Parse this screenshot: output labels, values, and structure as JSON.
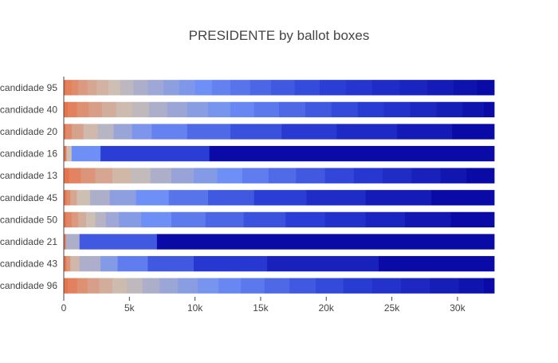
{
  "chart_data": {
    "type": "bar",
    "orientation": "horizontal",
    "stacked": true,
    "title": "PRESIDENTE by ballot boxes",
    "xlabel": "",
    "ylabel": "",
    "xlim": [
      0,
      32800
    ],
    "x_ticks": [
      0,
      5000,
      10000,
      15000,
      20000,
      25000,
      30000
    ],
    "x_tick_labels": [
      "0",
      "5k",
      "10k",
      "15k",
      "20k",
      "25k",
      "30k"
    ],
    "colorscale": [
      "#e8734a",
      "#cdbfb4",
      "#6e8ff5",
      "#2a3ed6",
      "#0a0aa6"
    ],
    "categories": [
      "candidade 95",
      "candidade 40",
      "candidade 20",
      "candidade 16",
      "candidade 13",
      "candidade 45",
      "candidade 50",
      "candidade 21",
      "candidade 43",
      "candidade 96"
    ],
    "series_cumulative": [
      [
        0,
        150,
        600,
        1100,
        1800,
        2500,
        3400,
        4300,
        5300,
        6400,
        7600,
        8800,
        10000,
        11300,
        12700,
        14200,
        15800,
        17600,
        19500,
        21500,
        23500,
        25600,
        27700,
        29700,
        31500,
        32800
      ],
      [
        0,
        300,
        1000,
        1900,
        2900,
        4000,
        5200,
        6500,
        7900,
        9400,
        11000,
        12700,
        14500,
        16400,
        18400,
        20400,
        22400,
        24400,
        26400,
        28400,
        30400,
        32000,
        32800
      ],
      [
        0,
        150,
        600,
        1500,
        2600,
        3800,
        5200,
        6700,
        9400,
        12700,
        16600,
        20800,
        25400,
        29600,
        32800
      ],
      [
        0,
        200,
        600,
        2800,
        11100,
        32800
      ],
      [
        0,
        400,
        1300,
        2400,
        3700,
        5100,
        6600,
        8200,
        9900,
        11700,
        13600,
        15600,
        17700,
        19900,
        22100,
        24300,
        26500,
        28700,
        30700,
        32800
      ],
      [
        0,
        200,
        500,
        1000,
        2000,
        3500,
        5500,
        8000,
        11000,
        14500,
        18500,
        23000,
        28000,
        32800
      ],
      [
        0,
        200,
        600,
        1100,
        1700,
        2400,
        3200,
        4200,
        5900,
        8200,
        10800,
        13700,
        16900,
        19900,
        23000,
        26000,
        29500,
        32800
      ],
      [
        0,
        150,
        1200,
        7100,
        32800
      ],
      [
        0,
        200,
        500,
        1200,
        2800,
        4100,
        6400,
        9900,
        15500,
        24000,
        32800
      ],
      [
        0,
        300,
        1000,
        1800,
        2700,
        3700,
        4800,
        6000,
        7300,
        8700,
        10200,
        11800,
        13500,
        15300,
        17200,
        19200,
        21300,
        23500,
        25700,
        27900,
        30100,
        32000,
        32800
      ]
    ]
  }
}
